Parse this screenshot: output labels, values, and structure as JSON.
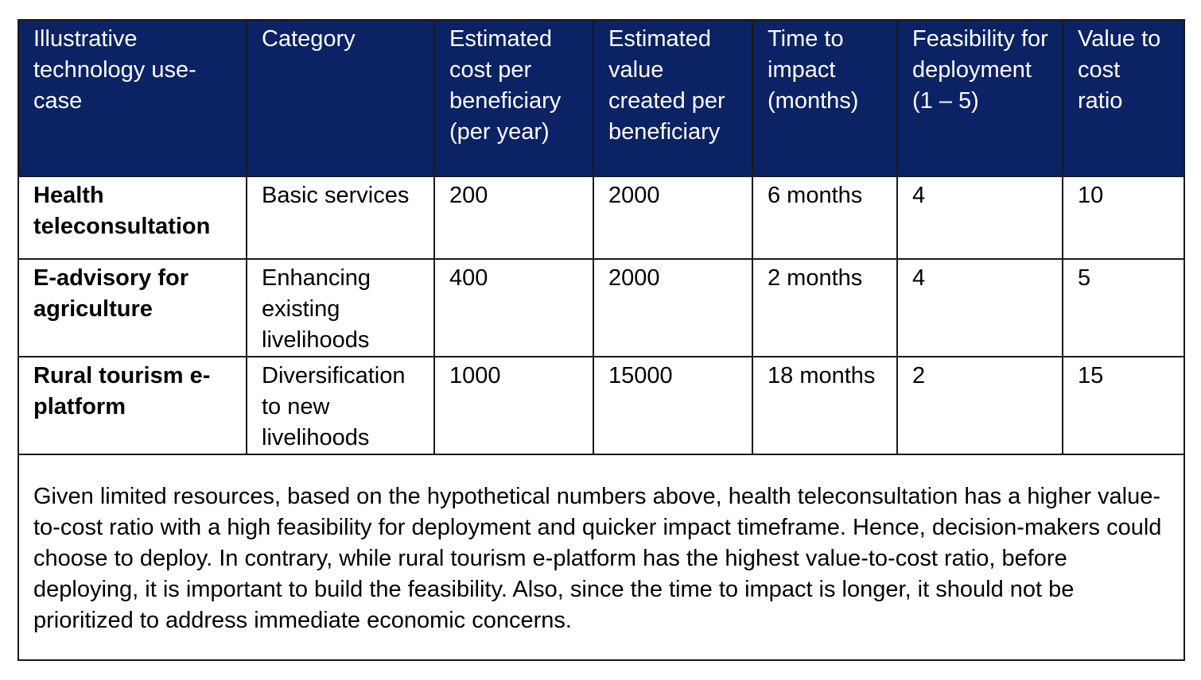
{
  "table": {
    "headers": [
      "Illustrative technology use-case",
      "Category",
      "Estimated cost per beneficiary (per year)",
      "Estimated value created per beneficiary",
      "Time to impact (months)",
      "Feasibility for deployment (1 – 5)",
      "Value to cost ratio"
    ],
    "rows": [
      {
        "use_case": "Health teleconsultation",
        "category": "Basic services",
        "cost": "200",
        "value": "2000",
        "time": "6 months",
        "feasibility": "4",
        "ratio": "10"
      },
      {
        "use_case": "E-advisory for agriculture",
        "category": "Enhancing existing livelihoods",
        "cost": "400",
        "value": "2000",
        "time": "2 months",
        "feasibility": "4",
        "ratio": "5"
      },
      {
        "use_case": "Rural tourism e-platform",
        "category": "Diversification to new livelihoods",
        "cost": "1000",
        "value": "15000",
        "time": "18 months",
        "feasibility": "2",
        "ratio": "15"
      }
    ]
  },
  "summary": "Given limited resources, based on the hypothetical numbers above, health teleconsultation has a higher value-to-cost ratio with a high feasibility for deployment and quicker impact timeframe. Hence, decision-makers could choose to deploy. In contrary, while rural tourism e-platform has the highest value-to-cost ratio, before deploying, it is important to build the feasibility. Also, since the time to impact is longer, it should not be prioritized to address immediate economic concerns.",
  "colors": {
    "header_background": "#0b2265",
    "header_text": "#ffffff",
    "border": "#1a1a1a"
  }
}
